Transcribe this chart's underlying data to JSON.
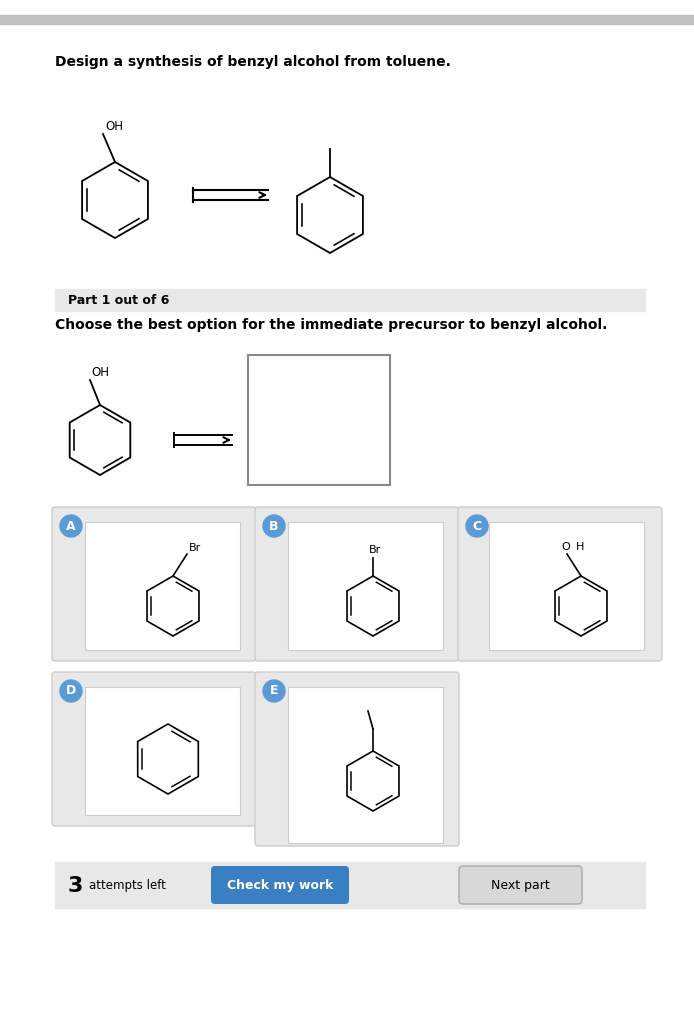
{
  "title_text": "Design a synthesis of benzyl alcohol from toluene.",
  "part_label": "Part 1 out of 6",
  "question_text": "Choose the best option for the immediate precursor to benzyl alcohol.",
  "bg_color": "#ffffff",
  "top_bar_color": "#c8c8c8",
  "part_bar_color": "#e8e8e8",
  "bottom_bar_color": "#e8e8e8",
  "option_bg": "#e8e8e8",
  "option_label_color": "#5b9bd5",
  "check_btn_color": "#3a7fc1",
  "next_btn_color": "#d8d8d8",
  "next_btn_border": "#aaaaaa"
}
